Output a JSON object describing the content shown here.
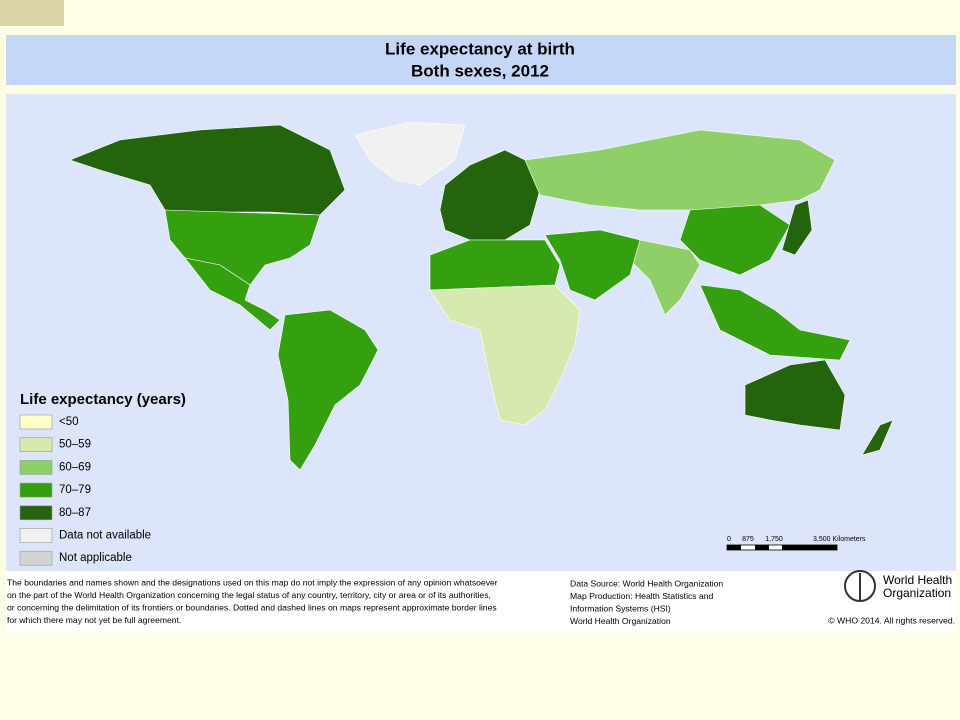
{
  "header": {
    "title_lines": [
      "Life expectancy at birth",
      "Both sexes, 2012"
    ]
  },
  "legend": {
    "title": "Life expectancy (years)",
    "items": [
      {
        "label": "<50",
        "color": "#ffffc6"
      },
      {
        "label": "50–59",
        "color": "#d6eab0"
      },
      {
        "label": "60–69",
        "color": "#8fcf68"
      },
      {
        "label": "70–79",
        "color": "#35a00f"
      },
      {
        "label": "80–87",
        "color": "#24640c"
      },
      {
        "label": "Data not available",
        "color": "#f1f1f1"
      },
      {
        "label": "Not applicable",
        "color": "#d3d3d3"
      }
    ]
  },
  "scale": {
    "labels": [
      "0",
      "875",
      "1,750",
      "3,500 Kilometers"
    ]
  },
  "disclaimer": [
    "The boundaries and names shown and the designations used on this map do not imply the expression of any opinion whatsoever",
    "on the part of the World Health Organization concerning the legal status of any country, territory, city or area or of its authorities,",
    "or concerning the delimitation of its frontiers or boundaries. Dotted and dashed lines on maps represent approximate border lines",
    "for which there may not yet be full agreement."
  ],
  "source": [
    "Data Source: World Health Organization",
    "Map Production: Health Statistics and",
    "Information Systems (HSI)",
    "World Health Organization"
  ],
  "logo": [
    "World Health",
    "Organization"
  ],
  "copyright": "© WHO 2014. All rights reserved."
}
